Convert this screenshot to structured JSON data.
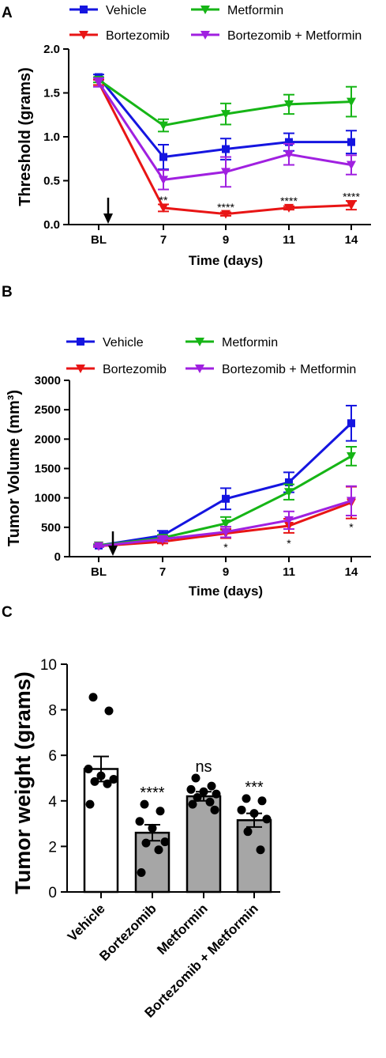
{
  "colors": {
    "vehicle": "#1515e0",
    "bortezomib": "#e81515",
    "metformin": "#16b516",
    "combo": "#a020e0",
    "bar_gray": "#a6a6a6"
  },
  "chart_data": [
    {
      "panel": "A",
      "type": "line",
      "categories": [
        "BL",
        "7",
        "9",
        "11",
        "14"
      ],
      "xlabel": "Time (days)",
      "ylabel": "Threshold (grams)",
      "ylim": [
        0,
        2.0
      ],
      "yticks": [
        "0.0",
        "0.5",
        "1.0",
        "1.5",
        "2.0"
      ],
      "legend_position": "top",
      "arrow_at": "BL",
      "series": [
        {
          "name": "Vehicle",
          "color_key": "vehicle",
          "marker": "square",
          "values": [
            1.68,
            0.77,
            0.86,
            0.94,
            0.94
          ],
          "errors": [
            0.03,
            0.14,
            0.12,
            0.1,
            0.13
          ]
        },
        {
          "name": "Metformin",
          "color_key": "metformin",
          "marker": "triangle-down",
          "values": [
            1.65,
            1.13,
            1.26,
            1.37,
            1.4
          ],
          "errors": [
            0.03,
            0.07,
            0.12,
            0.11,
            0.17
          ]
        },
        {
          "name": "Bortezomib",
          "color_key": "bortezomib",
          "marker": "triangle-down",
          "values": [
            1.62,
            0.19,
            0.12,
            0.19,
            0.22
          ],
          "errors": [
            0.03,
            0.04,
            0.02,
            0.02,
            0.05
          ]
        },
        {
          "name": "Bortezomib + Metformin",
          "color_key": "combo",
          "marker": "triangle-down",
          "values": [
            1.62,
            0.51,
            0.6,
            0.8,
            0.68
          ],
          "errors": [
            0.05,
            0.11,
            0.17,
            0.12,
            0.11
          ]
        }
      ],
      "annotations": [
        {
          "category": "7",
          "text": "**",
          "y": 0.27
        },
        {
          "category": "9",
          "text": "****",
          "y": 0.19
        },
        {
          "category": "11",
          "text": "****",
          "y": 0.26
        },
        {
          "category": "14",
          "text": "****",
          "y": 0.31
        }
      ]
    },
    {
      "panel": "B",
      "type": "line",
      "categories": [
        "BL",
        "7",
        "9",
        "11",
        "14"
      ],
      "xlabel": "Time (days)",
      "ylabel": "Tumor Volume (mm³)",
      "ylim": [
        0,
        3000
      ],
      "yticks": [
        "0",
        "500",
        "1000",
        "1500",
        "2000",
        "2500",
        "3000"
      ],
      "legend_position": "top",
      "arrow_at": "BL",
      "series": [
        {
          "name": "Vehicle",
          "color_key": "vehicle",
          "marker": "square",
          "values": [
            190,
            360,
            985,
            1265,
            2270
          ],
          "errors": [
            20,
            80,
            180,
            170,
            300
          ]
        },
        {
          "name": "Metformin",
          "color_key": "metformin",
          "marker": "triangle-down",
          "values": [
            190,
            320,
            565,
            1100,
            1710
          ],
          "errors": [
            20,
            50,
            110,
            130,
            160
          ]
        },
        {
          "name": "Bortezomib",
          "color_key": "bortezomib",
          "marker": "triangle-down",
          "values": [
            180,
            255,
            395,
            525,
            920
          ],
          "errors": [
            15,
            30,
            80,
            120,
            270
          ]
        },
        {
          "name": "Bortezomib + Metformin",
          "color_key": "combo",
          "marker": "triangle-down",
          "values": [
            180,
            300,
            420,
            620,
            950
          ],
          "errors": [
            15,
            40,
            90,
            150,
            250
          ]
        }
      ],
      "annotations": [
        {
          "category": "9",
          "text": "*",
          "y": 150
        },
        {
          "category": "11",
          "text": "*",
          "y": 215
        },
        {
          "category": "14",
          "text": "*",
          "y": 490
        }
      ]
    },
    {
      "panel": "C",
      "type": "bar",
      "ylabel": "Tumor weight (grams)",
      "ylim": [
        0,
        10
      ],
      "yticks": [
        "0",
        "2",
        "4",
        "6",
        "8",
        "10"
      ],
      "categories": [
        "Vehicle",
        "Bortezomib",
        "Metformin",
        "Bortezomib + Metformin"
      ],
      "values": [
        5.4,
        2.6,
        4.2,
        3.15
      ],
      "errors": [
        0.55,
        0.35,
        0.2,
        0.3
      ],
      "fill_keys": [
        "white",
        "bar_gray",
        "bar_gray",
        "bar_gray"
      ],
      "significance": [
        "",
        "****",
        "ns",
        "***"
      ],
      "points": [
        [
          8.55,
          7.95,
          5.4,
          5.1,
          4.95,
          4.85,
          4.75,
          3.85
        ],
        [
          3.85,
          3.55,
          3.1,
          2.8,
          2.2,
          2.15,
          1.85,
          0.85
        ],
        [
          5.0,
          4.65,
          4.5,
          4.4,
          4.3,
          4.15,
          3.95,
          3.85,
          3.6
        ],
        [
          4.1,
          4.0,
          3.6,
          3.45,
          3.2,
          2.65,
          1.85
        ]
      ]
    }
  ]
}
